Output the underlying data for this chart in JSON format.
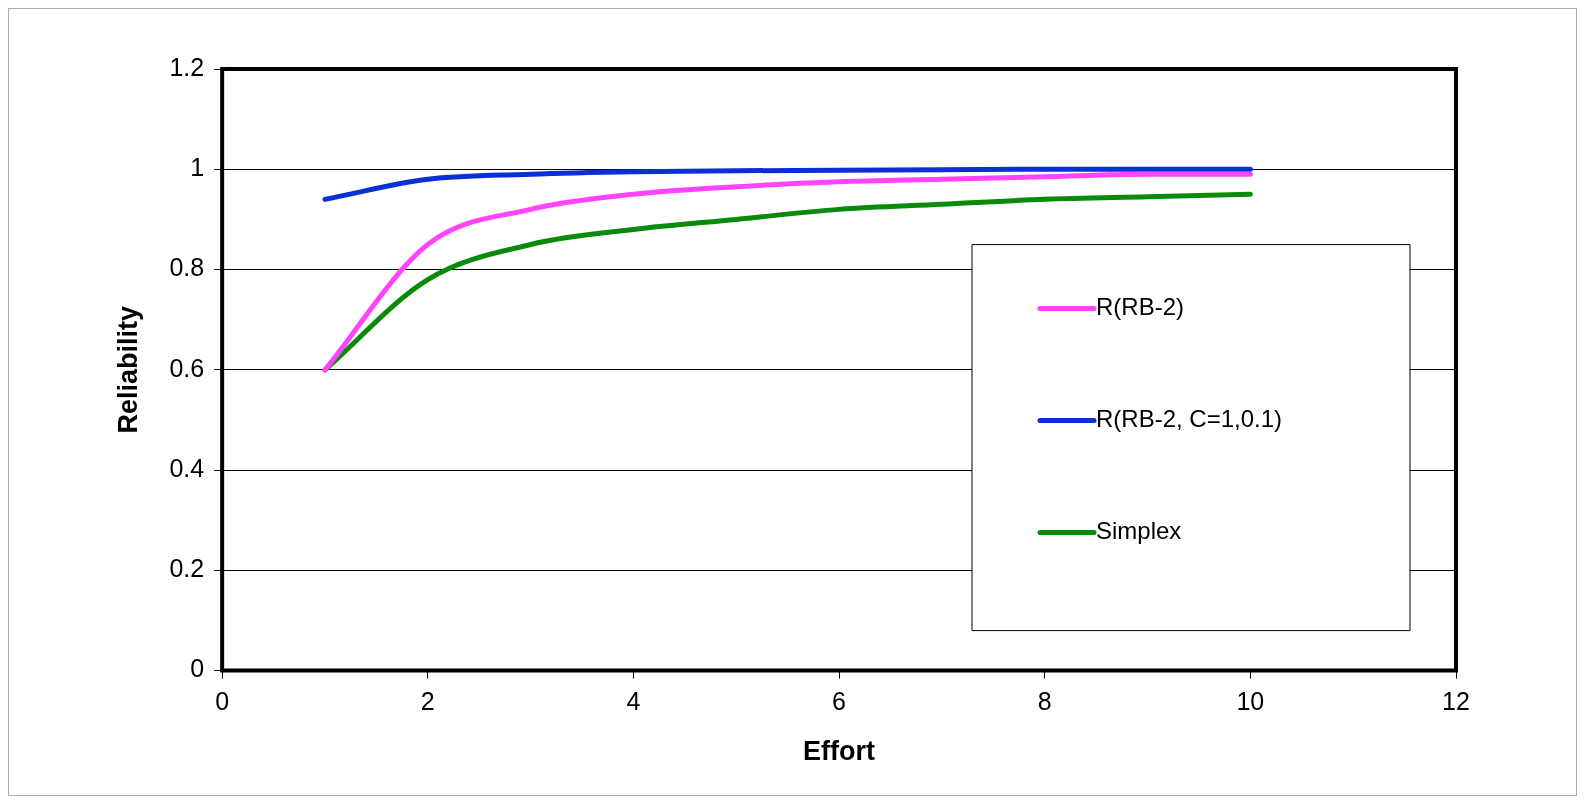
{
  "chart_data": {
    "type": "line",
    "xlabel": "Effort",
    "ylabel": "Reliability",
    "x": [
      1,
      2,
      3,
      4,
      5,
      6,
      7,
      8,
      9,
      10
    ],
    "xlim": [
      0,
      12
    ],
    "xticks": [
      0,
      2,
      4,
      6,
      8,
      10,
      12
    ],
    "ylim": [
      0,
      1.2
    ],
    "yticks": [
      0,
      0.2,
      0.4,
      0.6,
      0.8,
      1,
      1.2
    ],
    "grid": "y",
    "legend": "bottom right",
    "marker": "none",
    "line_style": "solid",
    "series": [
      {
        "name": "R(RB-2)",
        "color": "#ff44ff",
        "values": [
          0.6,
          0.85,
          0.92,
          0.95,
          0.965,
          0.975,
          0.98,
          0.985,
          0.99,
          0.99
        ]
      },
      {
        "name": "R(RB-2, C=1,0.1)",
        "color": "#0a2fd6",
        "values": [
          0.94,
          0.98,
          0.99,
          0.995,
          0.997,
          0.998,
          0.999,
          1,
          1,
          1
        ]
      },
      {
        "name": "Simplex",
        "color": "#0a8a0a",
        "values": [
          0.6,
          0.78,
          0.85,
          0.88,
          0.9,
          0.92,
          0.93,
          0.94,
          0.945,
          0.95
        ]
      }
    ]
  }
}
